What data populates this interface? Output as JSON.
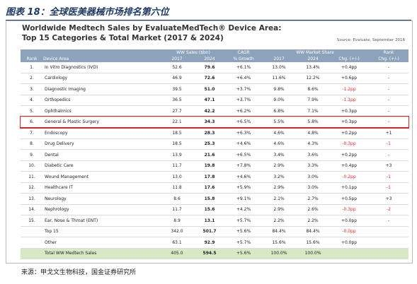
{
  "figure_title": "图表 18：全球医美器械市场排名第六位",
  "panel": {
    "title_line1": "Worldwide Medtech Sales by EvaluateMedTech® Device Area:",
    "title_line2": "Top 15 Categories & Total Market (2017 & 2024)",
    "source": "Source: Evaluate, September 2018"
  },
  "table": {
    "groups": {
      "sales": "WW Sales ($bn)",
      "cagr": "CAGR",
      "share": "WW Market Share",
      "rank_chg": "Rank"
    },
    "header": {
      "rank": "Rank",
      "area": "Device Area",
      "s2017": "2017",
      "s2024": "2024",
      "cagr": "% Growth",
      "ms2017": "2017",
      "ms2024": "2024",
      "chg": "Chg. (+/-)",
      "rank_chg": "Chg. (+/-)"
    },
    "negative_color": "#d9262b",
    "highlight_row": 5,
    "highlight_color": "#d9262b",
    "total_row_color": "#d6e8c4",
    "rows": [
      {
        "rank": "1.",
        "area": "In Vitro Diagnostics (IVD)",
        "s2017": "52.6",
        "s2024": "79.6",
        "cagr": "+6.1%",
        "ms2017": "13.0%",
        "ms2024": "13.4%",
        "chg": "+0.4pp",
        "rank_chg": "-"
      },
      {
        "rank": "2.",
        "area": "Cardiology",
        "s2017": "46.9",
        "s2024": "72.6",
        "cagr": "+6.4%",
        "ms2017": "11.6%",
        "ms2024": "12.2%",
        "chg": "+0.6pp",
        "rank_chg": "-"
      },
      {
        "rank": "3.",
        "area": "Diagnostic Imaging",
        "s2017": "39.5",
        "s2024": "51.0",
        "cagr": "+3.7%",
        "ms2017": "9.8%",
        "ms2024": "8.6%",
        "chg": "-1.2pp",
        "rank_chg": "-"
      },
      {
        "rank": "4.",
        "area": "Orthopedics",
        "s2017": "36.5",
        "s2024": "47.1",
        "cagr": "+3.7%",
        "ms2017": "9.0%",
        "ms2024": "7.9%",
        "chg": "-1.1pp",
        "rank_chg": "-"
      },
      {
        "rank": "5.",
        "area": "Ophthalmics",
        "s2017": "27.7",
        "s2024": "42.2",
        "cagr": "+6.2%",
        "ms2017": "6.8%",
        "ms2024": "7.1%",
        "chg": "+0.3pp",
        "rank_chg": "-"
      },
      {
        "rank": "6.",
        "area": "General & Plastic Surgery",
        "s2017": "22.1",
        "s2024": "34.3",
        "cagr": "+6.5%",
        "ms2017": "5.5%",
        "ms2024": "5.8%",
        "chg": "+0.3pp",
        "rank_chg": "-"
      },
      {
        "rank": "7.",
        "area": "Endoscopy",
        "s2017": "18.5",
        "s2024": "28.3",
        "cagr": "+6.3%",
        "ms2017": "4.6%",
        "ms2024": "4.8%",
        "chg": "+0.2pp",
        "rank_chg": "+1"
      },
      {
        "rank": "8.",
        "area": "Drug Delivery",
        "s2017": "18.5",
        "s2024": "25.3",
        "cagr": "+4.6%",
        "ms2017": "4.6%",
        "ms2024": "4.3%",
        "chg": "-0.3pp",
        "rank_chg": "-1"
      },
      {
        "rank": "9.",
        "area": "Dental",
        "s2017": "13.9",
        "s2024": "21.6",
        "cagr": "+6.5%",
        "ms2017": "3.4%",
        "ms2024": "3.6%",
        "chg": "+0.2pp",
        "rank_chg": "-"
      },
      {
        "rank": "10.",
        "area": "Diabetic Care",
        "s2017": "11.7",
        "s2024": "19.8",
        "cagr": "+7.8%",
        "ms2017": "2.9%",
        "ms2024": "3.3%",
        "chg": "+0.4pp",
        "rank_chg": "+3"
      },
      {
        "rank": "11.",
        "area": "Wound Management",
        "s2017": "13.0",
        "s2024": "17.8",
        "cagr": "+4.6%",
        "ms2017": "3.2%",
        "ms2024": "3.0%",
        "chg": "-0.2pp",
        "rank_chg": "-1"
      },
      {
        "rank": "12.",
        "area": "Healthcare IT",
        "s2017": "11.8",
        "s2024": "17.6",
        "cagr": "+5.9%",
        "ms2017": "2.9%",
        "ms2024": "3.0%",
        "chg": "+0.1pp",
        "rank_chg": "-1"
      },
      {
        "rank": "13.",
        "area": "Neurology",
        "s2017": "8.6",
        "s2024": "15.8",
        "cagr": "+9.1%",
        "ms2017": "2.1%",
        "ms2024": "2.7%",
        "chg": "+0.5pp",
        "rank_chg": "+3"
      },
      {
        "rank": "14.",
        "area": "Nephrology",
        "s2017": "11.7",
        "s2024": "15.6",
        "cagr": "+4.2%",
        "ms2017": "2.9%",
        "ms2024": "2.6%",
        "chg": "-0.3pp",
        "rank_chg": "-2"
      },
      {
        "rank": "15.",
        "area": "Ear, Nose & Throat (ENT)",
        "s2017": "8.9",
        "s2024": "13.1",
        "cagr": "+5.7%",
        "ms2017": "2.2%",
        "ms2024": "2.2%",
        "chg": "+0.0pp",
        "rank_chg": "-"
      },
      {
        "area": "Top 15",
        "s2017": "342.0",
        "s2024": "501.7",
        "cagr": "+5.6%",
        "ms2017": "84.4%",
        "ms2024": "84.4%",
        "chg": "-0.0pp"
      },
      {
        "area": "Other",
        "s2017": "63.1",
        "s2024": "92.9",
        "cagr": "+5.7%",
        "ms2017": "15.6%",
        "ms2024": "15.6%",
        "chg": "+0.0pp"
      },
      {
        "area": "Total WW Medtech Sales",
        "s2017": "405.0",
        "s2024": "594.5",
        "cagr": "+5.6%",
        "ms2017": "100.0%",
        "ms2024": "100.0%",
        "total": true
      }
    ]
  },
  "footer": "来源：甲戈文生物科技，国金证券研究所"
}
